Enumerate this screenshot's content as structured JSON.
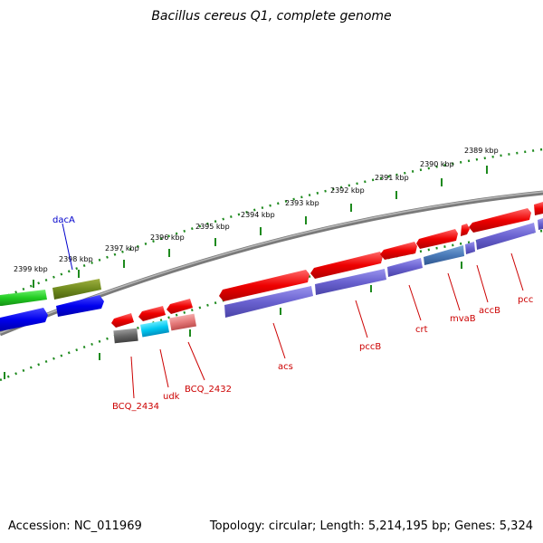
{
  "title": "Bacillus cereus Q1, complete genome",
  "footer": {
    "accession": "Accession: NC_011969",
    "summary": "Topology: circular; Length: 5,214,195 bp; Genes: 5,324"
  },
  "colors": {
    "backbone": "#8a8a8a",
    "tick": "#1e8a1e",
    "label_red": "#cc0000",
    "label_blue": "#0000cc"
  },
  "kbp_ticks": [
    {
      "label": "2399 kbp"
    },
    {
      "label": "2398 kbp"
    },
    {
      "label": "2397 kbp"
    },
    {
      "label": "2396 kbp"
    },
    {
      "label": "2395 kbp"
    },
    {
      "label": "2394 kbp"
    },
    {
      "label": "2393 kbp"
    },
    {
      "label": "2392 kbp"
    },
    {
      "label": "2391 kbp"
    },
    {
      "label": "2390 kbp"
    },
    {
      "label": "2389 kbp"
    }
  ],
  "gene_labels": [
    {
      "name": "dacA"
    },
    {
      "name": "BCQ_2434"
    },
    {
      "name": "udk"
    },
    {
      "name": "BCQ_2432"
    },
    {
      "name": "acs"
    },
    {
      "name": "pccB"
    },
    {
      "name": "crt"
    },
    {
      "name": "mvaB"
    },
    {
      "name": "accB"
    },
    {
      "name": "pcc"
    }
  ]
}
